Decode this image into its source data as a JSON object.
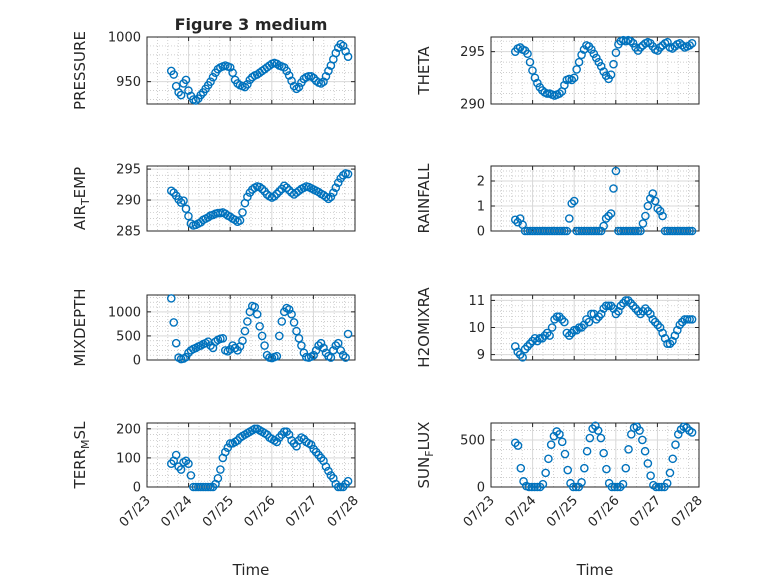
{
  "figure": {
    "title": "Figure 3 medium",
    "xlabel": "Time",
    "colors": {
      "marker": "#0072BD",
      "axis": "#262626",
      "grid": "#bdbdbd",
      "background": "#ffffff"
    }
  },
  "chart_data": [
    {
      "type": "scatter",
      "ylabel": "PRESSURE",
      "xlim": [
        "07/23",
        "07/28"
      ],
      "ylim": [
        925,
        1000
      ],
      "yticks": [
        "950",
        "1000"
      ],
      "xticks": [
        "07/23",
        "07/24",
        "07/25",
        "07/26",
        "07/27",
        "07/28"
      ],
      "marker": "circle",
      "grid": true,
      "series": [
        {
          "x_start": "07/23 14:00",
          "x_end": "07/27 20:00",
          "values": [
            962,
            958,
            945,
            938,
            935,
            948,
            952,
            940,
            934,
            930,
            929,
            931,
            935,
            938,
            942,
            946,
            950,
            955,
            960,
            964,
            966,
            967,
            968,
            967,
            966,
            960,
            952,
            948,
            946,
            945,
            944,
            947,
            952,
            955,
            957,
            958,
            960,
            962,
            964,
            966,
            968,
            970,
            971,
            970,
            968,
            967,
            966,
            962,
            957,
            951,
            945,
            942,
            944,
            949,
            953,
            955,
            956,
            956,
            954,
            951,
            949,
            948,
            950,
            956,
            962,
            968,
            975,
            982,
            988,
            992,
            990,
            984,
            978
          ]
        }
      ]
    },
    {
      "type": "scatter",
      "ylabel": "THETA",
      "xlim": [
        "07/23",
        "07/28"
      ],
      "ylim": [
        290,
        296.4
      ],
      "yticks": [
        "290",
        "295"
      ],
      "xticks": [
        "07/23",
        "07/24",
        "07/25",
        "07/26",
        "07/27",
        "07/28"
      ],
      "marker": "circle",
      "grid": true,
      "series": [
        {
          "x_start": "07/23 14:00",
          "x_end": "07/27 20:00",
          "values": [
            295.0,
            295.3,
            295.4,
            295.2,
            295.1,
            294.8,
            294.0,
            293.2,
            292.5,
            292.0,
            291.6,
            291.3,
            291.1,
            291.0,
            291.0,
            290.9,
            290.8,
            290.9,
            291.0,
            291.2,
            291.8,
            292.3,
            292.4,
            292.3,
            292.5,
            293.3,
            294.0,
            294.7,
            295.2,
            295.6,
            295.5,
            295.2,
            294.8,
            294.4,
            294.0,
            293.6,
            293.1,
            292.7,
            292.4,
            292.8,
            293.8,
            294.9,
            295.7,
            296.0,
            296.1,
            296.0,
            296.1,
            296.0,
            295.8,
            295.4,
            295.1,
            295.4,
            295.6,
            295.8,
            295.9,
            295.8,
            295.5,
            295.2,
            295.1,
            295.4,
            295.6,
            295.8,
            295.9,
            295.4,
            295.3,
            295.5,
            295.7,
            295.8,
            295.6,
            295.4,
            295.5,
            295.6,
            295.8
          ]
        }
      ]
    },
    {
      "type": "scatter",
      "ylabel": "AIR_TEMP",
      "xlim": [
        "07/23",
        "07/28"
      ],
      "ylim": [
        285,
        295.5
      ],
      "yticks": [
        "285",
        "290",
        "295"
      ],
      "xticks": [
        "07/23",
        "07/24",
        "07/25",
        "07/26",
        "07/27",
        "07/28"
      ],
      "marker": "circle",
      "grid": true,
      "series": [
        {
          "x_start": "07/23 14:00",
          "x_end": "07/27 20:00",
          "values": [
            291.5,
            291.2,
            290.7,
            290.1,
            289.6,
            289.9,
            288.6,
            287.4,
            286.2,
            285.9,
            286.0,
            286.2,
            286.4,
            286.8,
            287.0,
            287.2,
            287.5,
            287.6,
            287.8,
            287.9,
            287.9,
            288.0,
            287.8,
            287.5,
            287.3,
            287.0,
            286.8,
            286.5,
            286.7,
            288.0,
            289.5,
            290.5,
            291.2,
            291.7,
            292.0,
            292.2,
            292.1,
            291.8,
            291.4,
            290.9,
            290.6,
            290.4,
            290.6,
            291.0,
            291.4,
            291.8,
            292.3,
            292.0,
            291.6,
            291.2,
            290.9,
            291.2,
            291.5,
            291.8,
            292.0,
            292.2,
            292.1,
            291.9,
            291.7,
            291.5,
            291.3,
            291.0,
            290.8,
            290.5,
            290.2,
            290.5,
            291.2,
            292.0,
            292.8,
            293.5,
            294.0,
            294.3,
            294.2
          ]
        }
      ]
    },
    {
      "type": "scatter",
      "ylabel": "RAINFALL",
      "xlim": [
        "07/23",
        "07/28"
      ],
      "ylim": [
        0,
        2.6
      ],
      "yticks": [
        "0",
        "1",
        "2"
      ],
      "xticks": [
        "07/23",
        "07/24",
        "07/25",
        "07/26",
        "07/27",
        "07/28"
      ],
      "marker": "circle",
      "grid": true,
      "series": [
        {
          "x_start": "07/23 14:00",
          "x_end": "07/27 20:00",
          "values": [
            0.45,
            0.35,
            0.5,
            0.25,
            0.0,
            0.0,
            0.0,
            0.0,
            0.0,
            0.0,
            0.0,
            0.0,
            0.0,
            0.0,
            0.0,
            0.0,
            0.0,
            0.0,
            0.0,
            0.0,
            0.0,
            0.0,
            0.5,
            1.1,
            1.2,
            0.0,
            0.0,
            0.0,
            0.0,
            0.0,
            0.0,
            0.0,
            0.0,
            0.0,
            0.0,
            0.0,
            0.2,
            0.5,
            0.6,
            0.7,
            1.7,
            2.4,
            0.0,
            0.0,
            0.0,
            0.0,
            0.0,
            0.0,
            0.0,
            0.0,
            0.0,
            0.0,
            0.3,
            0.6,
            1.0,
            1.3,
            1.5,
            1.2,
            0.9,
            0.8,
            0.6,
            0.0,
            0.0,
            0.0,
            0.0,
            0.0,
            0.0,
            0.0,
            0.0,
            0.0,
            0.0,
            0.0,
            0.0
          ]
        }
      ]
    },
    {
      "type": "scatter",
      "ylabel": "MIXDEPTH",
      "xlim": [
        "07/23",
        "07/28"
      ],
      "ylim": [
        0,
        1350
      ],
      "yticks": [
        "0",
        "500",
        "1000"
      ],
      "xticks": [
        "07/23",
        "07/24",
        "07/25",
        "07/26",
        "07/27",
        "07/28"
      ],
      "marker": "circle",
      "grid": true,
      "series": [
        {
          "x_start": "07/23 14:00",
          "x_end": "07/27 20:00",
          "values": [
            1280,
            780,
            350,
            50,
            20,
            30,
            60,
            150,
            200,
            230,
            250,
            280,
            300,
            330,
            350,
            380,
            300,
            250,
            380,
            420,
            440,
            450,
            200,
            180,
            220,
            300,
            250,
            200,
            280,
            400,
            600,
            800,
            1000,
            1120,
            1100,
            950,
            700,
            500,
            300,
            100,
            50,
            40,
            60,
            80,
            500,
            800,
            1000,
            1080,
            1050,
            950,
            780,
            600,
            450,
            300,
            150,
            60,
            50,
            70,
            100,
            200,
            300,
            350,
            250,
            150,
            80,
            50,
            200,
            300,
            350,
            200,
            100,
            50,
            540
          ]
        }
      ]
    },
    {
      "type": "scatter",
      "ylabel": "H2OMIXRA",
      "xlim": [
        "07/23",
        "07/28"
      ],
      "ylim": [
        8.8,
        11.2
      ],
      "yticks": [
        "9",
        "10",
        "11"
      ],
      "xticks": [
        "07/23",
        "07/24",
        "07/25",
        "07/26",
        "07/27",
        "07/28"
      ],
      "marker": "circle",
      "grid": true,
      "series": [
        {
          "x_start": "07/23 14:00",
          "x_end": "07/27 20:00",
          "values": [
            9.3,
            9.1,
            9.0,
            8.9,
            9.2,
            9.3,
            9.4,
            9.5,
            9.6,
            9.5,
            9.6,
            9.6,
            9.7,
            9.8,
            9.7,
            10.0,
            10.3,
            10.4,
            10.4,
            10.3,
            10.2,
            9.8,
            9.7,
            9.8,
            9.9,
            9.9,
            10.0,
            10.0,
            10.1,
            10.3,
            10.2,
            10.5,
            10.5,
            10.3,
            10.4,
            10.5,
            10.7,
            10.8,
            10.8,
            10.8,
            10.7,
            10.5,
            10.6,
            10.8,
            10.9,
            11.0,
            11.0,
            10.9,
            10.8,
            10.7,
            10.6,
            10.5,
            10.6,
            10.7,
            10.6,
            10.5,
            10.3,
            10.2,
            10.1,
            10.0,
            9.8,
            9.6,
            9.4,
            9.4,
            9.5,
            9.7,
            9.9,
            10.1,
            10.2,
            10.3,
            10.3,
            10.3,
            10.3
          ]
        }
      ]
    },
    {
      "type": "scatter",
      "ylabel": "TERR_MSL",
      "xlim": [
        "07/23",
        "07/28"
      ],
      "ylim": [
        0,
        220
      ],
      "yticks": [
        "0",
        "100",
        "200"
      ],
      "xticks": [
        "07/23",
        "07/24",
        "07/25",
        "07/26",
        "07/27",
        "07/28"
      ],
      "marker": "circle",
      "grid": true,
      "series": [
        {
          "x_start": "07/23 14:00",
          "x_end": "07/27 20:00",
          "values": [
            80,
            90,
            110,
            70,
            60,
            85,
            90,
            80,
            40,
            0,
            0,
            0,
            0,
            0,
            0,
            0,
            0,
            0,
            10,
            30,
            60,
            100,
            120,
            135,
            150,
            150,
            155,
            160,
            170,
            175,
            180,
            185,
            190,
            195,
            200,
            200,
            195,
            190,
            185,
            180,
            170,
            165,
            160,
            155,
            170,
            180,
            190,
            190,
            180,
            160,
            150,
            140,
            160,
            170,
            165,
            155,
            150,
            145,
            130,
            120,
            110,
            100,
            90,
            70,
            55,
            40,
            30,
            10,
            0,
            0,
            0,
            10,
            20
          ]
        }
      ]
    },
    {
      "type": "scatter",
      "ylabel": "SUN_FLUX",
      "xlim": [
        "07/23",
        "07/28"
      ],
      "ylim": [
        0,
        680
      ],
      "yticks": [
        "0",
        "500"
      ],
      "xticks": [
        "07/23",
        "07/24",
        "07/25",
        "07/26",
        "07/27",
        "07/28"
      ],
      "marker": "circle",
      "grid": true,
      "series": [
        {
          "x_start": "07/23 14:00",
          "x_end": "07/27 20:00",
          "values": [
            470,
            440,
            200,
            60,
            10,
            0,
            0,
            0,
            0,
            0,
            30,
            150,
            300,
            450,
            540,
            590,
            560,
            480,
            350,
            180,
            40,
            0,
            0,
            0,
            50,
            200,
            380,
            520,
            620,
            650,
            600,
            520,
            360,
            190,
            40,
            0,
            0,
            0,
            0,
            30,
            200,
            400,
            560,
            630,
            640,
            600,
            500,
            380,
            250,
            120,
            20,
            0,
            0,
            0,
            0,
            40,
            150,
            300,
            450,
            560,
            610,
            640,
            630,
            600,
            580
          ]
        }
      ]
    }
  ]
}
